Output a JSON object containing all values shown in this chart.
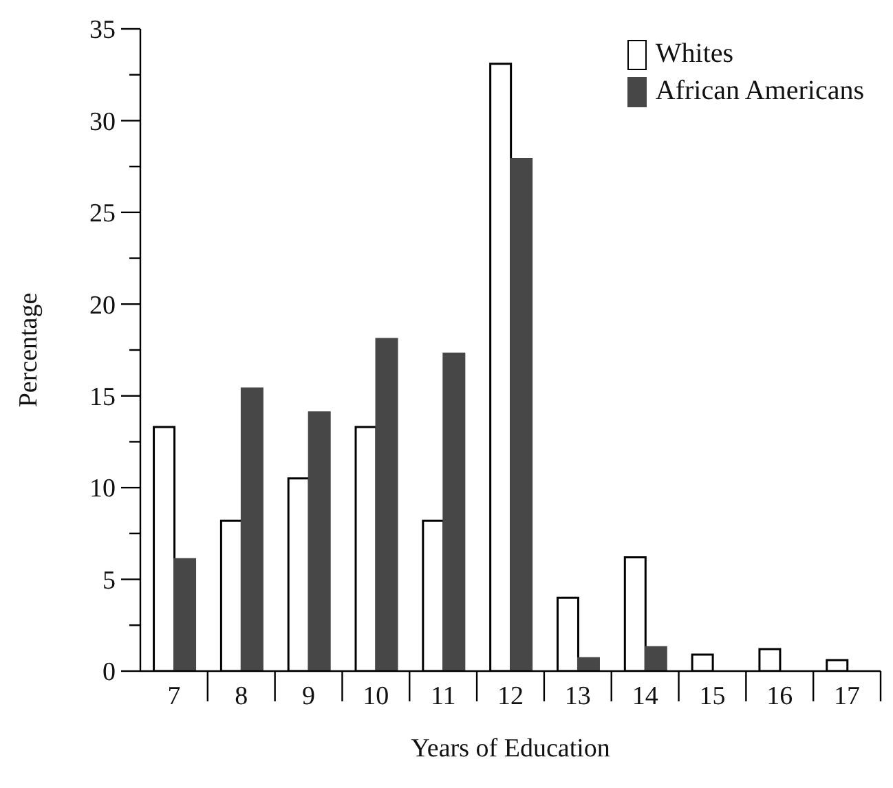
{
  "chart_data": {
    "type": "bar",
    "xlabel": "Years of Education",
    "ylabel": "Percentage",
    "categories": [
      "7",
      "8",
      "9",
      "10",
      "11",
      "12",
      "13",
      "14",
      "15",
      "16",
      "17"
    ],
    "series": [
      {
        "name": "Whites",
        "color": "#ffffff",
        "values": [
          13.3,
          8.2,
          10.5,
          13.3,
          8.2,
          33.1,
          4.0,
          6.2,
          0.9,
          1.2,
          0.6
        ]
      },
      {
        "name": "African Americans",
        "color": "#474747",
        "values": [
          6.1,
          15.4,
          14.1,
          18.1,
          17.3,
          27.9,
          0.7,
          1.3,
          0,
          0,
          0
        ]
      }
    ],
    "ylim": [
      0,
      35
    ],
    "yticks": [
      0,
      {
        "value": 2.5,
        "label": null
      },
      5,
      {
        "value": 7.5,
        "label": null
      },
      10,
      {
        "value": 12.5,
        "label": null
      },
      15,
      {
        "value": 17.5,
        "label": null
      },
      20,
      {
        "value": 22.5,
        "label": null
      },
      25,
      {
        "value": 27.5,
        "label": null
      },
      30,
      {
        "value": 32.5,
        "label": null
      },
      35
    ],
    "grid": false,
    "legend": "top right"
  }
}
